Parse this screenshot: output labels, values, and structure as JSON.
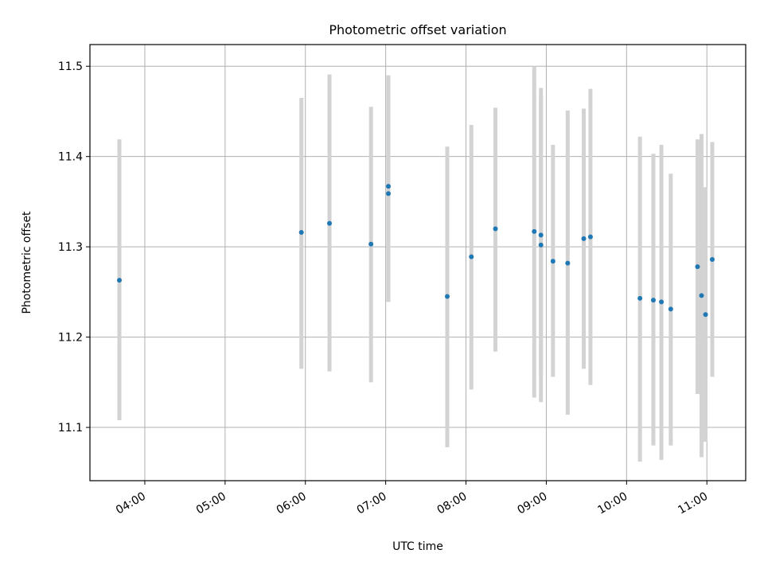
{
  "chart_data": {
    "type": "scatter",
    "title": "Photometric offset variation",
    "xlabel": "UTC time",
    "ylabel": "Photometric offset",
    "x_axis_kind": "time",
    "xlim": [
      "03:19",
      "11:29"
    ],
    "ylim": [
      11.041,
      11.524
    ],
    "grid": true,
    "x_ticks": [
      "04:00",
      "05:00",
      "06:00",
      "07:00",
      "08:00",
      "09:00",
      "10:00",
      "11:00"
    ],
    "y_ticks": [
      11.1,
      11.2,
      11.3,
      11.4,
      11.5
    ],
    "y_tick_labels": [
      "11.1",
      "11.2",
      "11.3",
      "11.4",
      "11.5"
    ],
    "marker_color": "#1f77b4",
    "errorbar_color": "#d3d3d3",
    "series": [
      {
        "points": [
          {
            "x": "03:41",
            "y": 11.263,
            "ylo": 11.108,
            "yhi": 11.419
          },
          {
            "x": "05:57",
            "y": 11.316,
            "ylo": 11.165,
            "yhi": 11.465
          },
          {
            "x": "06:18",
            "y": 11.326,
            "ylo": 11.162,
            "yhi": 11.491
          },
          {
            "x": "06:49",
            "y": 11.303,
            "ylo": 11.15,
            "yhi": 11.455
          },
          {
            "x": "07:02",
            "y": 11.359,
            "ylo": 11.239,
            "yhi": 11.47
          },
          {
            "x": "07:02",
            "y": 11.367,
            "ylo": 11.244,
            "yhi": 11.49
          },
          {
            "x": "07:46",
            "y": 11.245,
            "ylo": 11.078,
            "yhi": 11.411
          },
          {
            "x": "08:04",
            "y": 11.289,
            "ylo": 11.142,
            "yhi": 11.435
          },
          {
            "x": "08:22",
            "y": 11.32,
            "ylo": 11.184,
            "yhi": 11.454
          },
          {
            "x": "08:51",
            "y": 11.317,
            "ylo": 11.133,
            "yhi": 11.5
          },
          {
            "x": "08:56",
            "y": 11.302,
            "ylo": 11.128,
            "yhi": 11.476
          },
          {
            "x": "08:56",
            "y": 11.313,
            "ylo": 11.16,
            "yhi": 11.467
          },
          {
            "x": "09:05",
            "y": 11.284,
            "ylo": 11.156,
            "yhi": 11.413
          },
          {
            "x": "09:16",
            "y": 11.282,
            "ylo": 11.114,
            "yhi": 11.451
          },
          {
            "x": "09:28",
            "y": 11.309,
            "ylo": 11.165,
            "yhi": 11.453
          },
          {
            "x": "09:33",
            "y": 11.311,
            "ylo": 11.147,
            "yhi": 11.475
          },
          {
            "x": "10:10",
            "y": 11.243,
            "ylo": 11.062,
            "yhi": 11.422
          },
          {
            "x": "10:20",
            "y": 11.241,
            "ylo": 11.08,
            "yhi": 11.403
          },
          {
            "x": "10:26",
            "y": 11.239,
            "ylo": 11.064,
            "yhi": 11.413
          },
          {
            "x": "10:33",
            "y": 11.231,
            "ylo": 11.08,
            "yhi": 11.381
          },
          {
            "x": "10:53",
            "y": 11.278,
            "ylo": 11.137,
            "yhi": 11.419
          },
          {
            "x": "10:56",
            "y": 11.246,
            "ylo": 11.067,
            "yhi": 11.425
          },
          {
            "x": "10:59",
            "y": 11.225,
            "ylo": 11.084,
            "yhi": 11.366
          },
          {
            "x": "11:04",
            "y": 11.286,
            "ylo": 11.156,
            "yhi": 11.416
          }
        ]
      }
    ]
  }
}
